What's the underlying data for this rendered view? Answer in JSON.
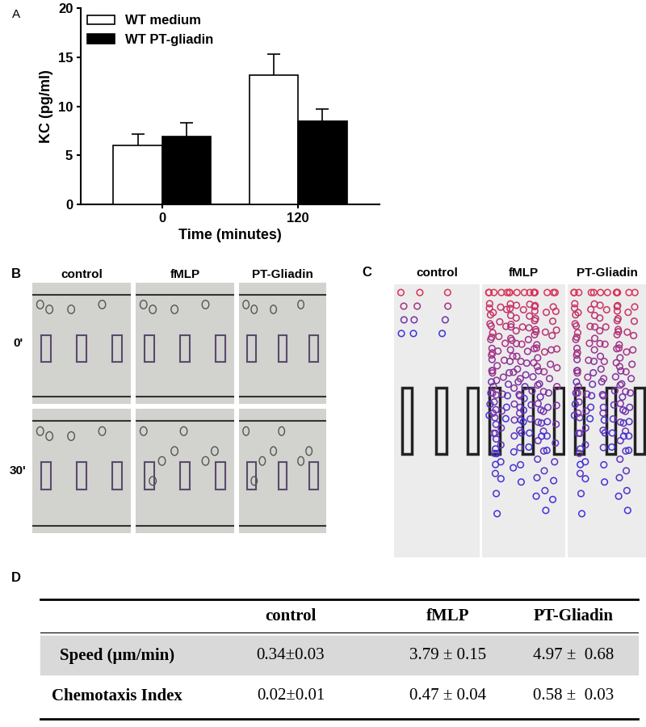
{
  "chart_data": {
    "type": "bar",
    "annotation": "A",
    "x_label": "Time (minutes)",
    "y_label": "KC (pg/ml)",
    "categories": [
      "0",
      "120"
    ],
    "series": [
      {
        "name": "WT medium",
        "color": "#ffffff",
        "values": [
          6.0,
          13.2
        ],
        "errors": [
          1.2,
          2.1
        ]
      },
      {
        "name": "WT PT-gliadin",
        "color": "#000000",
        "values": [
          6.9,
          8.5
        ],
        "errors": [
          1.4,
          1.2
        ]
      }
    ],
    "ylim": [
      0,
      20
    ],
    "yticks": [
      0,
      5,
      10,
      15,
      20
    ],
    "legend": "upper left",
    "grid": false
  },
  "panel_b": {
    "label": "B",
    "columns": [
      "control",
      "fMLP",
      "PT-Gliadin"
    ],
    "rows": [
      "0'",
      "30'"
    ]
  },
  "panel_c": {
    "label": "C",
    "columns": [
      "control",
      "fMLP",
      "PT-Gliadin"
    ]
  },
  "panel_d": {
    "label": "D",
    "table": {
      "columns": [
        "control",
        "fMLP",
        "PT-Gliadin"
      ],
      "rows": [
        {
          "name": "Speed (μm/min)",
          "cells": [
            "0.34±0.03",
            "3.79 ± 0.15",
            "4.97 ±  0.68"
          ]
        },
        {
          "name": "Chemotaxis Index",
          "cells": [
            "0.02±0.01",
            "0.47 ± 0.04",
            "0.58 ±  0.03"
          ]
        }
      ]
    }
  }
}
